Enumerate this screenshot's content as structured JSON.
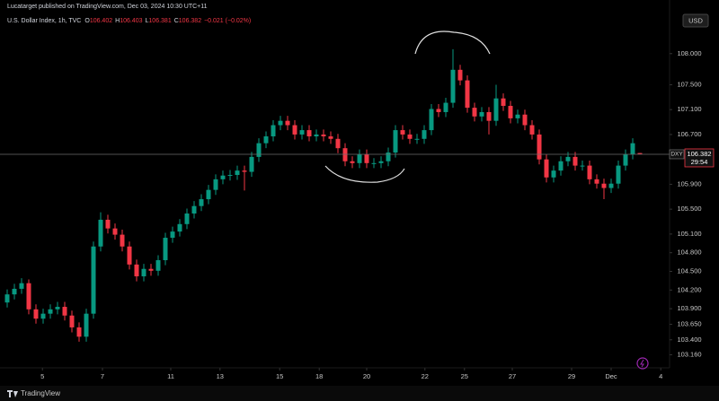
{
  "header": {
    "publisher": "Lucatarget published on TradingView.com, Dec 03, 2024 10:30 UTC+11",
    "symbol": "U.S. Dollar Index, 1h, TVC",
    "ohlc": [
      {
        "key": "O",
        "value": "106.402"
      },
      {
        "key": "H",
        "value": "106.403"
      },
      {
        "key": "L",
        "value": "106.381"
      },
      {
        "key": "C",
        "value": "106.382"
      }
    ],
    "change": "−0.021 (−0.02%)",
    "currency": "USD"
  },
  "footer": {
    "brand": "TradingView"
  },
  "chart_data": {
    "type": "candlestick",
    "x": [
      1,
      2,
      3,
      4,
      5,
      6,
      7,
      8,
      9,
      10,
      11,
      12,
      13,
      14,
      15,
      16,
      17,
      18,
      19,
      20,
      21,
      22,
      23,
      24,
      25,
      26,
      27,
      28,
      29,
      30,
      31,
      32,
      33,
      34,
      35,
      36,
      37,
      38,
      39,
      40,
      41,
      42,
      43,
      44,
      45,
      46,
      47,
      48,
      49,
      50,
      51,
      52,
      53,
      54,
      55,
      56,
      57,
      58,
      59,
      60,
      61,
      62,
      63,
      64,
      65,
      66,
      67,
      68,
      69,
      70,
      71,
      72,
      73,
      74,
      75,
      76,
      77,
      78,
      79,
      80,
      81,
      82,
      83,
      84,
      85,
      86,
      87,
      88,
      89
    ],
    "open": [
      104.0,
      104.13,
      104.22,
      104.31,
      103.89,
      103.74,
      103.82,
      103.89,
      103.93,
      103.79,
      103.6,
      103.45,
      103.82,
      104.9,
      105.33,
      105.19,
      105.09,
      104.9,
      104.61,
      104.42,
      104.54,
      104.51,
      104.68,
      105.04,
      105.14,
      105.26,
      105.43,
      105.55,
      105.66,
      105.81,
      105.98,
      106.04,
      106.05,
      106.12,
      106.1,
      106.34,
      106.56,
      106.67,
      106.85,
      106.92,
      106.85,
      106.7,
      106.77,
      106.67,
      106.7,
      106.67,
      106.63,
      106.48,
      106.27,
      106.24,
      106.38,
      106.24,
      106.24,
      106.27,
      106.41,
      106.77,
      106.7,
      106.63,
      106.63,
      106.77,
      107.11,
      107.06,
      107.21,
      107.74,
      107.57,
      107.13,
      106.99,
      107.06,
      106.92,
      107.28,
      107.16,
      106.96,
      107.02,
      106.85,
      106.7,
      106.3,
      106.01,
      106.12,
      106.27,
      106.34,
      106.2,
      106.2,
      105.98,
      105.91,
      105.84,
      105.91,
      106.2,
      106.38,
      106.402
    ],
    "high": [
      104.21,
      104.3,
      104.39,
      104.37,
      103.97,
      103.9,
      103.97,
      104.01,
      104.01,
      103.87,
      103.68,
      103.9,
      104.98,
      105.45,
      105.41,
      105.27,
      105.17,
      104.98,
      104.69,
      104.62,
      104.62,
      104.76,
      105.12,
      105.22,
      105.34,
      105.51,
      105.63,
      105.74,
      105.89,
      106.06,
      106.12,
      106.13,
      106.2,
      106.2,
      106.42,
      106.64,
      106.75,
      106.93,
      107.0,
      107.0,
      106.93,
      106.85,
      106.85,
      106.78,
      106.78,
      106.75,
      106.71,
      106.56,
      106.35,
      106.46,
      106.46,
      106.32,
      106.35,
      106.49,
      106.85,
      106.85,
      106.78,
      106.71,
      106.85,
      107.19,
      107.19,
      107.29,
      108.07,
      107.82,
      107.65,
      107.21,
      107.14,
      107.14,
      107.5,
      107.36,
      107.24,
      107.1,
      107.1,
      106.93,
      106.78,
      106.38,
      106.2,
      106.35,
      106.42,
      106.42,
      106.28,
      106.28,
      106.06,
      105.99,
      105.99,
      106.28,
      106.46,
      106.64,
      106.403
    ],
    "low": [
      103.92,
      104.05,
      104.14,
      103.81,
      103.66,
      103.66,
      103.74,
      103.81,
      103.71,
      103.52,
      103.37,
      103.37,
      103.74,
      104.82,
      105.11,
      105.01,
      104.82,
      104.53,
      104.34,
      104.34,
      104.43,
      104.43,
      104.6,
      104.96,
      105.06,
      105.18,
      105.35,
      105.47,
      105.58,
      105.73,
      105.9,
      105.96,
      105.97,
      105.8,
      106.02,
      106.26,
      106.48,
      106.59,
      106.77,
      106.77,
      106.62,
      106.62,
      106.59,
      106.59,
      106.59,
      106.55,
      106.4,
      106.19,
      106.16,
      106.16,
      106.16,
      106.16,
      106.16,
      106.19,
      106.33,
      106.62,
      106.55,
      106.55,
      106.55,
      106.69,
      106.98,
      106.98,
      107.13,
      107.49,
      107.05,
      106.91,
      106.91,
      106.7,
      106.84,
      107.08,
      106.88,
      106.88,
      106.77,
      106.62,
      106.22,
      105.93,
      105.93,
      106.04,
      106.19,
      106.12,
      106.12,
      105.9,
      105.83,
      105.66,
      105.76,
      105.83,
      106.12,
      106.3,
      106.381
    ],
    "close": [
      104.13,
      104.22,
      104.31,
      103.89,
      103.74,
      103.82,
      103.89,
      103.93,
      103.79,
      103.6,
      103.45,
      103.82,
      104.9,
      105.33,
      105.19,
      105.09,
      104.9,
      104.61,
      104.42,
      104.54,
      104.51,
      104.68,
      105.04,
      105.14,
      105.26,
      105.43,
      105.55,
      105.66,
      105.81,
      105.98,
      106.04,
      106.05,
      106.12,
      106.1,
      106.34,
      106.56,
      106.67,
      106.85,
      106.92,
      106.85,
      106.7,
      106.77,
      106.67,
      106.7,
      106.67,
      106.63,
      106.48,
      106.27,
      106.24,
      106.38,
      106.24,
      106.24,
      106.27,
      106.41,
      106.77,
      106.7,
      106.63,
      106.63,
      106.77,
      107.11,
      107.06,
      107.21,
      107.74,
      107.57,
      107.13,
      106.99,
      107.06,
      106.92,
      107.28,
      107.16,
      106.96,
      107.02,
      106.85,
      106.7,
      106.3,
      106.01,
      106.12,
      106.27,
      106.34,
      106.2,
      106.2,
      105.98,
      105.91,
      105.84,
      105.91,
      106.2,
      106.38,
      106.56,
      106.382
    ],
    "up_color": "#089981",
    "down_color": "#f23645",
    "xlim": [
      0,
      93
    ],
    "xticks": [
      {
        "value": 5.9,
        "label": "5"
      },
      {
        "value": 14.25,
        "label": "7"
      },
      {
        "value": 23.75,
        "label": "11"
      },
      {
        "value": 30.6,
        "label": "13"
      },
      {
        "value": 38.9,
        "label": "15"
      },
      {
        "value": 44.4,
        "label": "18"
      },
      {
        "value": 51,
        "label": "20"
      },
      {
        "value": 59.1,
        "label": "22"
      },
      {
        "value": 64.6,
        "label": "25"
      },
      {
        "value": 71.25,
        "label": "27"
      },
      {
        "value": 79.5,
        "label": "29"
      },
      {
        "value": 85,
        "label": "Dec"
      },
      {
        "value": 91.9,
        "label": "4"
      }
    ],
    "ylim": [
      102.95,
      108.66
    ],
    "yticks": [
      {
        "value": 108,
        "label": "108.000"
      },
      {
        "value": 107.5,
        "label": "107.500"
      },
      {
        "value": 107.1,
        "label": "107.100"
      },
      {
        "value": 106.7,
        "label": "106.700"
      },
      {
        "value": 105.9,
        "label": "105.900"
      },
      {
        "value": 105.5,
        "label": "105.500"
      },
      {
        "value": 105.1,
        "label": "105.100"
      },
      {
        "value": 104.8,
        "label": "104.800"
      },
      {
        "value": 104.5,
        "label": "104.500"
      },
      {
        "value": 104.2,
        "label": "104.200"
      },
      {
        "value": 103.9,
        "label": "103.900"
      },
      {
        "value": 103.65,
        "label": "103.650"
      },
      {
        "value": 103.4,
        "label": "103.400"
      },
      {
        "value": 103.16,
        "label": "103.160"
      }
    ],
    "grid": false,
    "price_tag": {
      "symbol": "DXY",
      "price": "106.382",
      "countdown": "29:54"
    }
  }
}
